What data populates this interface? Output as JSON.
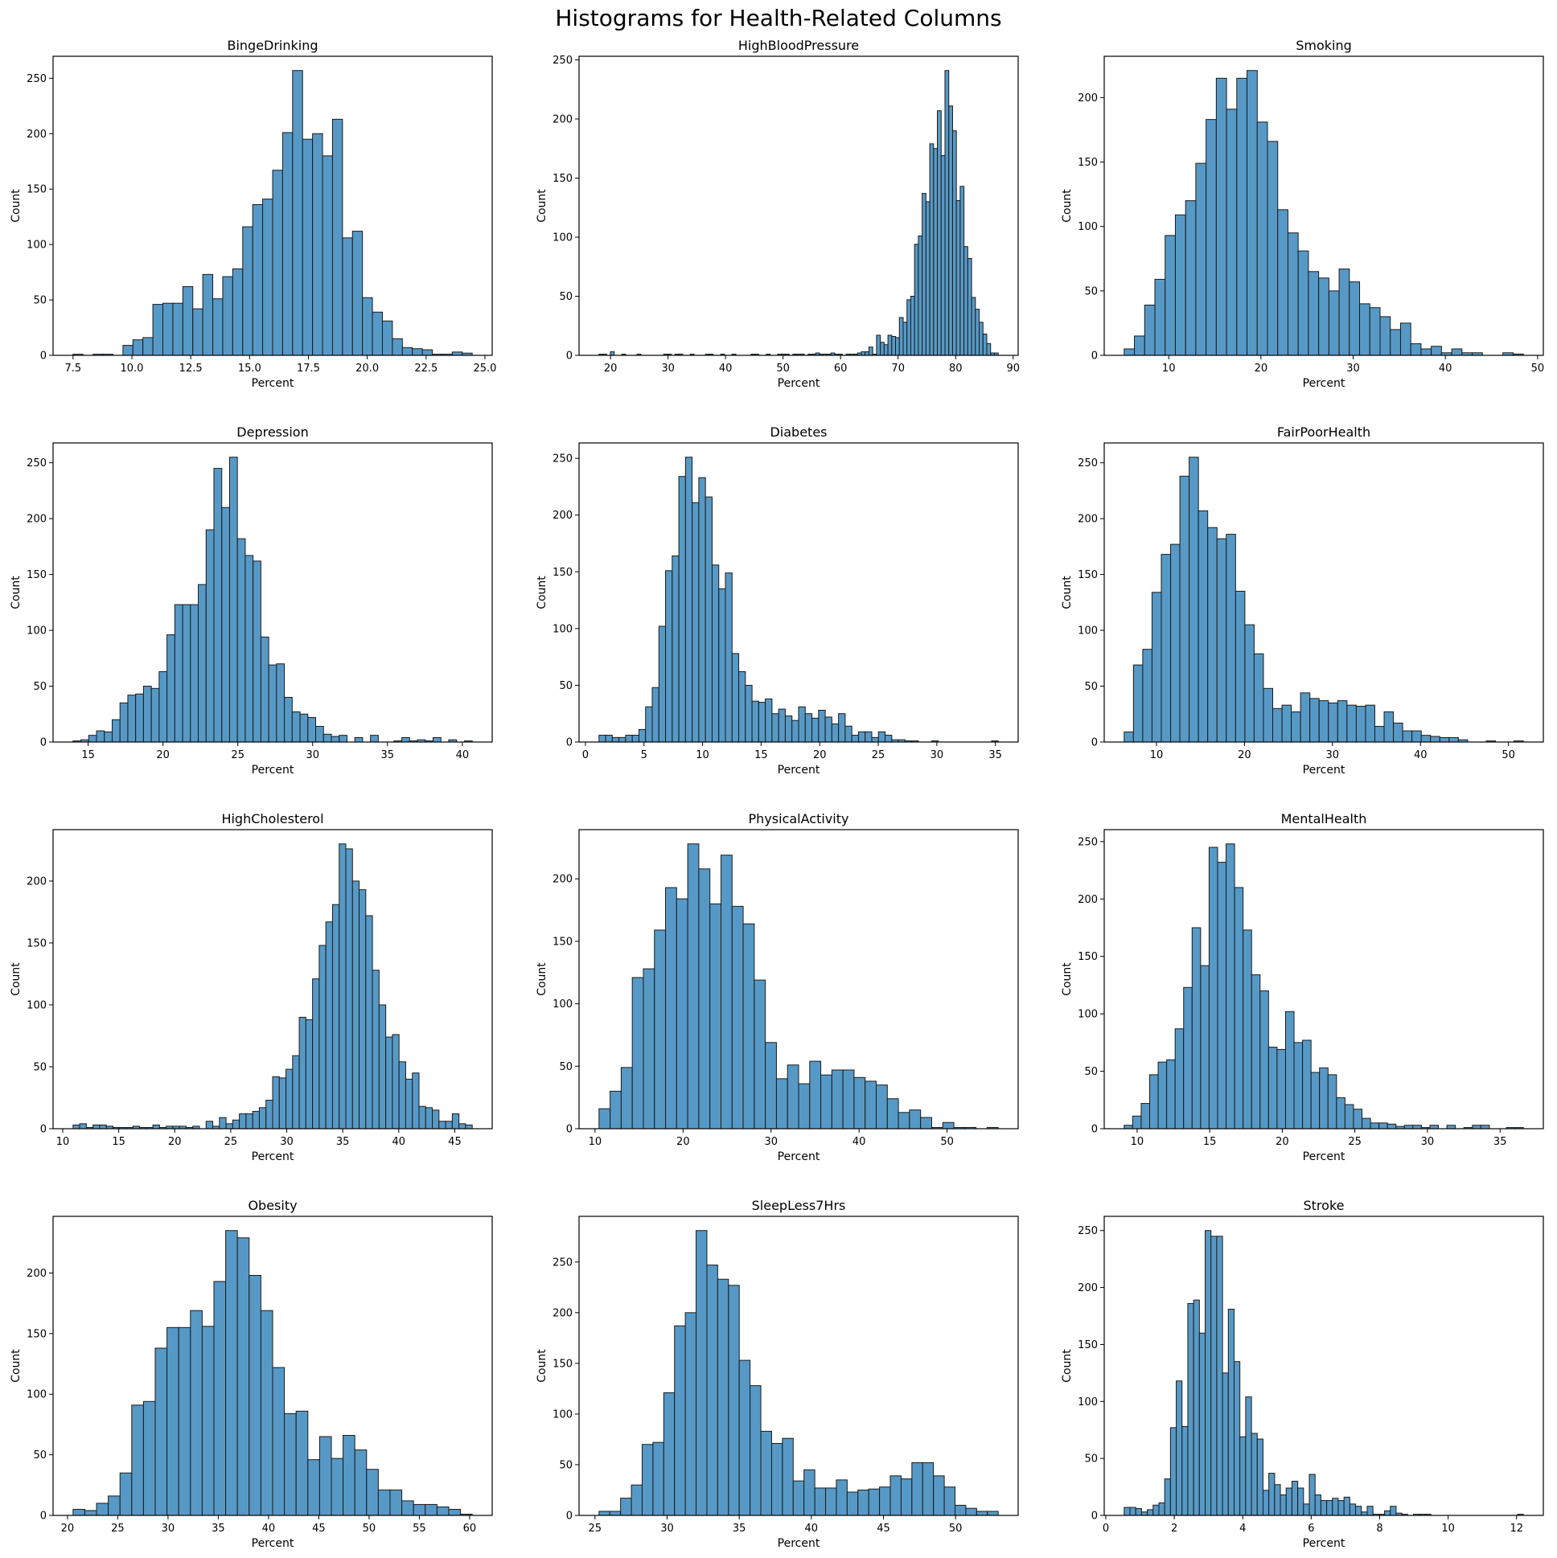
{
  "figure": {
    "title": "Histograms for Health-Related Columns"
  },
  "colors": {
    "bar_fill": "#5799c6",
    "bar_edge": "#1a1a1a",
    "axes": "#000000"
  },
  "chart_data": [
    {
      "type": "bar",
      "title": "BingeDrinking",
      "xlabel": "Percent",
      "ylabel": "Count",
      "bin_start": 7.5,
      "bin_width": 0.424,
      "counts": [
        1,
        0,
        1,
        1,
        0,
        9,
        14,
        16,
        46,
        47,
        47,
        62,
        42,
        73,
        51,
        71,
        78,
        116,
        136,
        141,
        167,
        201,
        257,
        195,
        200,
        180,
        213,
        106,
        112,
        52,
        39,
        31,
        15,
        7,
        6,
        5,
        1,
        1,
        3,
        2
      ],
      "xticks": [
        "7.5",
        "10.0",
        "12.5",
        "15.0",
        "17.5",
        "20.0",
        "22.5",
        "25.0"
      ],
      "yticks": [
        "0",
        "50",
        "100",
        "150",
        "200",
        "250"
      ]
    },
    {
      "type": "bar",
      "title": "HighBloodPressure",
      "xlabel": "Percent",
      "ylabel": "Count",
      "bin_start": 18.0,
      "bin_width": 0.661,
      "counts": [
        1,
        1,
        0,
        3,
        0,
        0,
        1,
        0,
        0,
        0,
        1,
        0,
        0,
        0,
        0,
        0,
        0,
        1,
        1,
        0,
        1,
        1,
        0,
        0,
        1,
        0,
        0,
        0,
        1,
        1,
        0,
        0,
        1,
        0,
        0,
        1,
        0,
        0,
        0,
        0,
        1,
        1,
        0,
        0,
        1,
        0,
        0,
        1,
        1,
        1,
        0,
        1,
        1,
        1,
        0,
        1,
        1,
        2,
        1,
        1,
        1,
        2,
        1,
        1,
        0,
        1,
        1,
        1,
        2,
        3,
        3,
        7,
        1,
        17,
        11,
        9,
        17,
        16,
        15,
        32,
        28,
        47,
        50,
        94,
        101,
        137,
        130,
        179,
        175,
        207,
        169,
        241,
        211,
        190,
        131,
        143,
        92,
        82,
        49,
        39,
        28,
        18,
        10,
        2,
        2
      ],
      "xticks": [
        "20",
        "30",
        "40",
        "50",
        "60",
        "70",
        "80",
        "90"
      ],
      "yticks": [
        "0",
        "50",
        "100",
        "150",
        "200",
        "250"
      ]
    },
    {
      "type": "bar",
      "title": "Smoking",
      "xlabel": "Percent",
      "ylabel": "Count",
      "bin_start": 5.17,
      "bin_width": 1.11,
      "counts": [
        5,
        15,
        39,
        59,
        93,
        109,
        120,
        149,
        183,
        215,
        191,
        215,
        221,
        181,
        166,
        113,
        95,
        81,
        65,
        60,
        50,
        67,
        57,
        40,
        37,
        30,
        20,
        25,
        9,
        5,
        7,
        2,
        5,
        2,
        2,
        0,
        0,
        2,
        1
      ],
      "xticks": [
        "10",
        "20",
        "30",
        "40",
        "50"
      ],
      "yticks": [
        "0",
        "50",
        "100",
        "150",
        "200"
      ]
    },
    {
      "type": "bar",
      "title": "Depression",
      "xlabel": "Percent",
      "ylabel": "Count",
      "bin_start": 13.99,
      "bin_width": 0.523,
      "counts": [
        1,
        2,
        6,
        10,
        9,
        20,
        35,
        42,
        43,
        50,
        48,
        63,
        96,
        123,
        123,
        123,
        141,
        190,
        245,
        210,
        255,
        182,
        167,
        162,
        94,
        69,
        70,
        40,
        27,
        25,
        22,
        14,
        7,
        5,
        6,
        0,
        4,
        0,
        6,
        0,
        0,
        1,
        4,
        1,
        2,
        1,
        4,
        0,
        2,
        0,
        1
      ],
      "xticks": [
        "15",
        "20",
        "25",
        "30",
        "35",
        "40"
      ],
      "yticks": [
        "0",
        "50",
        "100",
        "150",
        "200",
        "250"
      ]
    },
    {
      "type": "bar",
      "title": "Diabetes",
      "xlabel": "Percent",
      "ylabel": "Count",
      "bin_start": 1.16,
      "bin_width": 0.568,
      "counts": [
        6,
        6,
        4,
        4,
        6,
        6,
        11,
        31,
        48,
        102,
        151,
        164,
        234,
        251,
        211,
        233,
        216,
        156,
        135,
        149,
        78,
        62,
        50,
        36,
        35,
        38,
        25,
        29,
        23,
        19,
        31,
        25,
        21,
        28,
        22,
        16,
        25,
        14,
        6,
        9,
        9,
        4,
        9,
        6,
        2,
        2,
        1,
        1,
        0,
        0,
        1,
        0,
        0,
        0,
        0,
        0,
        0,
        0,
        0,
        1
      ],
      "xticks": [
        "0",
        "5",
        "10",
        "15",
        "20",
        "25",
        "30",
        "35"
      ],
      "yticks": [
        "0",
        "50",
        "100",
        "150",
        "200",
        "250"
      ]
    },
    {
      "type": "bar",
      "title": "FairPoorHealth",
      "xlabel": "Percent",
      "ylabel": "Count",
      "bin_start": 6.33,
      "bin_width": 1.055,
      "counts": [
        9,
        69,
        83,
        134,
        168,
        177,
        238,
        255,
        207,
        192,
        182,
        186,
        135,
        105,
        79,
        48,
        30,
        33,
        27,
        44,
        39,
        37,
        35,
        37,
        33,
        32,
        33,
        14,
        27,
        17,
        10,
        10,
        6,
        5,
        4,
        4,
        2,
        0,
        0,
        1,
        0,
        0,
        1
      ],
      "xticks": [
        "10",
        "20",
        "30",
        "40",
        "50"
      ],
      "yticks": [
        "0",
        "50",
        "100",
        "150",
        "200",
        "250"
      ]
    },
    {
      "type": "bar",
      "title": "HighCholesterol",
      "xlabel": "Percent",
      "ylabel": "Count",
      "bin_start": 10.92,
      "bin_width": 0.594,
      "counts": [
        3,
        4,
        1,
        3,
        3,
        2,
        1,
        1,
        1,
        2,
        1,
        1,
        3,
        1,
        2,
        2,
        2,
        1,
        2,
        0,
        6,
        2,
        9,
        4,
        7,
        12,
        12,
        14,
        17,
        23,
        42,
        41,
        48,
        59,
        90,
        88,
        121,
        148,
        167,
        181,
        230,
        226,
        200,
        193,
        172,
        128,
        100,
        74,
        76,
        54,
        40,
        45,
        18,
        17,
        15,
        6,
        6,
        12,
        4,
        3
      ],
      "xticks": [
        "10",
        "15",
        "20",
        "25",
        "30",
        "35",
        "40",
        "45"
      ],
      "yticks": [
        "0",
        "50",
        "100",
        "150",
        "200"
      ]
    },
    {
      "type": "bar",
      "title": "PhysicalActivity",
      "xlabel": "Percent",
      "ylabel": "Count",
      "bin_start": 10.45,
      "bin_width": 1.26,
      "counts": [
        16,
        30,
        49,
        121,
        128,
        159,
        193,
        184,
        228,
        208,
        180,
        219,
        178,
        164,
        119,
        69,
        40,
        51,
        36,
        54,
        43,
        47,
        47,
        41,
        38,
        35,
        24,
        13,
        15,
        9,
        1,
        5,
        1,
        1,
        0,
        1
      ],
      "xticks": [
        "10",
        "20",
        "30",
        "40",
        "50"
      ],
      "yticks": [
        "0",
        "50",
        "100",
        "150",
        "200"
      ]
    },
    {
      "type": "bar",
      "title": "MentalHealth",
      "xlabel": "Percent",
      "ylabel": "Count",
      "bin_start": 9.11,
      "bin_width": 0.585,
      "counts": [
        3,
        11,
        22,
        47,
        58,
        60,
        87,
        123,
        175,
        142,
        245,
        232,
        248,
        210,
        173,
        134,
        120,
        71,
        69,
        102,
        75,
        77,
        49,
        53,
        47,
        27,
        21,
        17,
        9,
        5,
        5,
        4,
        2,
        3,
        3,
        1,
        3,
        0,
        3,
        0,
        1,
        3,
        3,
        0,
        0,
        1,
        1
      ],
      "xticks": [
        "10",
        "15",
        "20",
        "25",
        "30",
        "35"
      ],
      "yticks": [
        "0",
        "50",
        "100",
        "150",
        "200",
        "250"
      ]
    },
    {
      "type": "bar",
      "title": "Obesity",
      "xlabel": "Percent",
      "ylabel": "Count",
      "bin_start": 20.55,
      "bin_width": 1.168,
      "counts": [
        5,
        4,
        10,
        16,
        35,
        91,
        94,
        138,
        155,
        155,
        169,
        156,
        193,
        235,
        229,
        198,
        169,
        122,
        84,
        86,
        46,
        65,
        47,
        66,
        54,
        38,
        21,
        21,
        12,
        9,
        9,
        7,
        5,
        1
      ],
      "xticks": [
        "20",
        "25",
        "30",
        "35",
        "40",
        "45",
        "50",
        "55",
        "60"
      ],
      "yticks": [
        "0",
        "50",
        "100",
        "150",
        "200"
      ]
    },
    {
      "type": "bar",
      "title": "SleepLess7Hrs",
      "xlabel": "Percent",
      "ylabel": "Count",
      "bin_start": 25.28,
      "bin_width": 0.748,
      "counts": [
        4,
        4,
        17,
        30,
        70,
        72,
        121,
        187,
        200,
        281,
        247,
        233,
        227,
        153,
        128,
        83,
        71,
        76,
        34,
        45,
        27,
        27,
        35,
        23,
        25,
        26,
        28,
        39,
        36,
        52,
        52,
        39,
        28,
        10,
        7,
        4,
        4
      ],
      "xticks": [
        "25",
        "30",
        "35",
        "40",
        "45",
        "50"
      ],
      "yticks": [
        "0",
        "50",
        "100",
        "150",
        "200",
        "250"
      ]
    },
    {
      "type": "bar",
      "title": "Stroke",
      "xlabel": "Percent",
      "ylabel": "Count",
      "bin_start": 0.537,
      "bin_width": 0.169,
      "counts": [
        7,
        7,
        6,
        3,
        5,
        9,
        11,
        32,
        77,
        118,
        78,
        186,
        189,
        160,
        250,
        245,
        245,
        125,
        181,
        135,
        69,
        104,
        72,
        67,
        22,
        37,
        27,
        18,
        24,
        30,
        24,
        10,
        36,
        18,
        13,
        13,
        15,
        13,
        16,
        10,
        8,
        3,
        8,
        1,
        1,
        4,
        8,
        2,
        1,
        0,
        1,
        1,
        1,
        0,
        0,
        0,
        0,
        0,
        0,
        0,
        0,
        0,
        0,
        0,
        0,
        0,
        0,
        0,
        1
      ],
      "xticks": [
        "0",
        "2",
        "4",
        "6",
        "8",
        "10",
        "12"
      ],
      "yticks": [
        "0",
        "50",
        "100",
        "150",
        "200",
        "250"
      ]
    }
  ]
}
